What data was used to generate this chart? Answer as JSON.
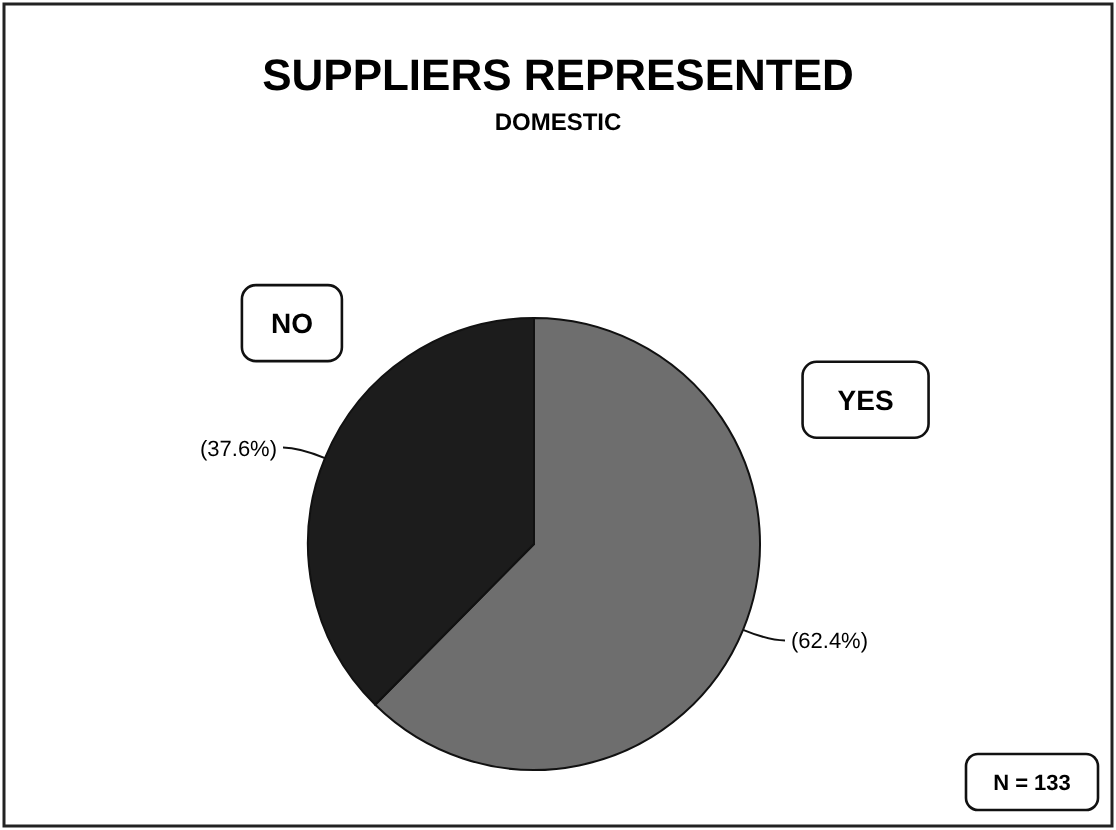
{
  "chart_data": {
    "type": "pie",
    "title": "SUPPLIERS REPRESENTED",
    "subtitle": "DOMESTIC",
    "categories": [
      "YES",
      "NO"
    ],
    "values": [
      62.4,
      37.6
    ],
    "value_labels": [
      "(62.4%)",
      "(37.6%)"
    ],
    "colors": [
      "#6e6e6e",
      "#1c1c1c"
    ],
    "annotations": [
      "N = 133"
    ]
  }
}
